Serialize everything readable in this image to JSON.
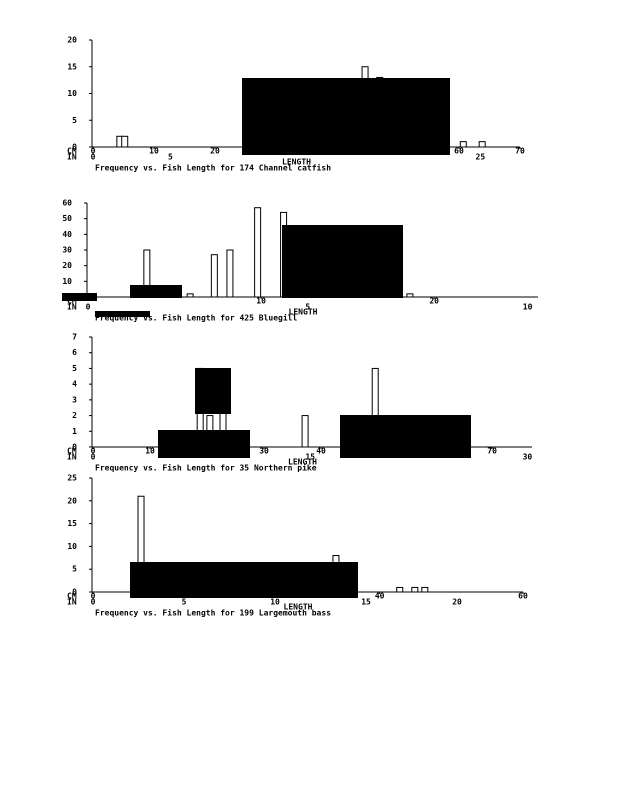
{
  "chart_data": [
    {
      "type": "histogram",
      "title": "Frequency vs. Fish Length for 174 Channel catfish",
      "x_label": "LENGTH",
      "cm_axis_label": "CM",
      "in_axis_label": "IN",
      "x": [
        4.4,
        5.2,
        44.6,
        47,
        60.7,
        63.8
      ],
      "values": [
        2,
        2,
        15,
        13,
        1,
        1
      ],
      "xlim": [
        0,
        70
      ],
      "xticks": [
        0,
        10,
        20,
        60,
        70
      ],
      "in_ticks": [
        0,
        5,
        25
      ],
      "ylim": [
        0,
        20
      ],
      "yticks": [
        0,
        5,
        10,
        15,
        20
      ]
    },
    {
      "type": "histogram",
      "title": "Frequency vs. Fish Length for 425 Bluegill",
      "x_label": "LENGTH",
      "cm_axis_label": "CM",
      "in_axis_label": "IN",
      "x": [
        3.4,
        5.9,
        7.3,
        8.2,
        9.8,
        11.3,
        18.6
      ],
      "values": [
        30,
        2,
        27,
        30,
        57,
        54,
        2
      ],
      "xlim": [
        0,
        26
      ],
      "xticks": [
        10,
        20
      ],
      "in_ticks": [
        0,
        5,
        10
      ],
      "ylim": [
        0,
        60
      ],
      "yticks": [
        0,
        10,
        20,
        30,
        40,
        50,
        60
      ]
    },
    {
      "type": "histogram",
      "title": "Frequency vs. Fish Length for 35 Northern pike",
      "x_label": "LENGTH",
      "cm_axis_label": "CM",
      "in_axis_label": "IN",
      "x": [
        18.8,
        20.5,
        22.8,
        37.2,
        49.5
      ],
      "values": [
        5,
        2,
        3,
        2,
        5
      ],
      "xlim": [
        0,
        77
      ],
      "xticks": [
        0,
        10,
        30,
        40,
        70
      ],
      "in_ticks": [
        0,
        15,
        30
      ],
      "ylim": [
        0,
        7
      ],
      "yticks": [
        0,
        1,
        2,
        3,
        4,
        5,
        6,
        7
      ]
    },
    {
      "type": "histogram",
      "title": "Frequency vs. Fish Length for 199 Largemouth bass",
      "x_label": "LENGTH",
      "cm_axis_label": "CM",
      "in_axis_label": "IN",
      "x": [
        6.7,
        33.9,
        42.8,
        44.9,
        46.3
      ],
      "values": [
        21,
        8,
        1,
        1,
        1
      ],
      "xlim": [
        0,
        60
      ],
      "xticks": [
        0,
        40,
        60
      ],
      "in_ticks": [
        0,
        5,
        10,
        15,
        20
      ],
      "ylim": [
        0,
        25
      ],
      "yticks": [
        0,
        5,
        10,
        15,
        20,
        25
      ]
    }
  ]
}
